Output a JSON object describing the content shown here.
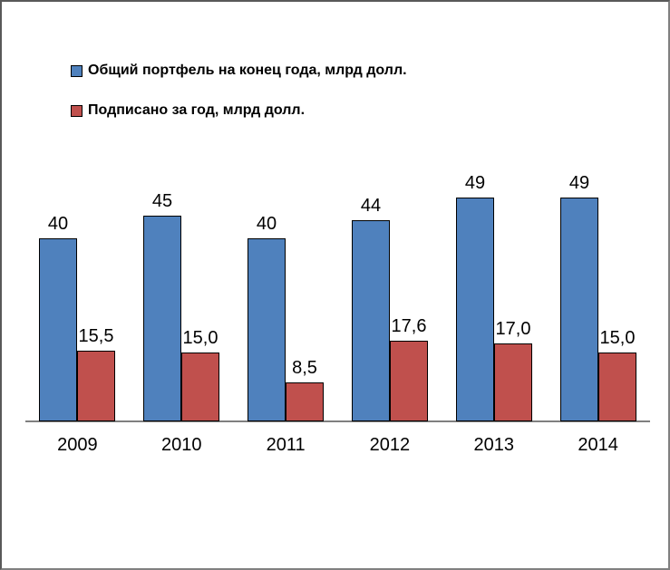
{
  "frame": {
    "background": "#ffffff",
    "border_color": "#808080"
  },
  "legend": {
    "position": "top-left",
    "items": [
      {
        "label": "Общий портфель на конец года, млрд долл.",
        "color": "#4F81BD",
        "border": "#000000"
      },
      {
        "label": "Подписано за год, млрд долл.",
        "color": "#C0504D",
        "border": "#000000"
      }
    ]
  },
  "axis": {
    "line_color": "#808080",
    "tick_labels": [
      "2009",
      "2010",
      "2011",
      "2012",
      "2013",
      "2014"
    ]
  },
  "chart_data": {
    "type": "bar",
    "title": "",
    "xlabel": "",
    "ylabel": "",
    "categories": [
      "2009",
      "2010",
      "2011",
      "2012",
      "2013",
      "2014"
    ],
    "series": [
      {
        "name": "Общий портфель на конец года, млрд долл.",
        "color": "#4F81BD",
        "values": [
          40,
          45,
          40,
          44,
          49,
          49
        ],
        "labels": [
          "40",
          "45",
          "40",
          "44",
          "49",
          "49"
        ]
      },
      {
        "name": "Подписано за год, млрд долл.",
        "color": "#C0504D",
        "values": [
          15.5,
          15.0,
          8.5,
          17.6,
          17.0,
          15.0
        ],
        "labels": [
          "15,5",
          "15,0",
          "8,5",
          "17,6",
          "17,0",
          "15,0"
        ]
      }
    ],
    "ylim": [
      0,
      55
    ],
    "grid": false,
    "data_labels": true,
    "legend_position": "top-left",
    "y_axis_visible": false
  }
}
